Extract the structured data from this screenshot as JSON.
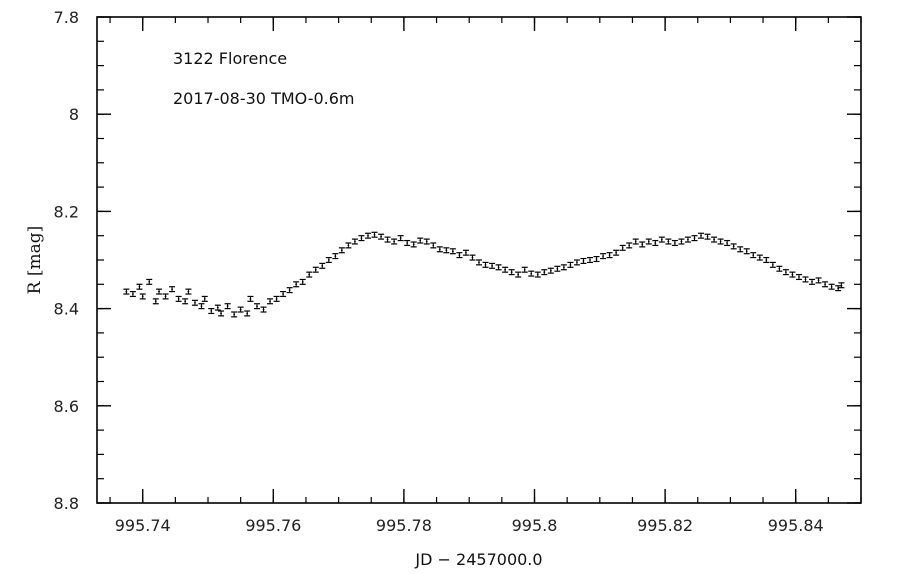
{
  "chart_data": {
    "type": "scatter",
    "title": "",
    "annotations": [
      "3122 Florence",
      "2017-08-30 TMO-0.6m"
    ],
    "xlabel": "JD − 2457000.0",
    "ylabel": "R [mag]",
    "xlim": [
      995.733,
      995.85
    ],
    "ylim": [
      7.8,
      8.8
    ],
    "y_inverted": true,
    "error_bars": true,
    "x_tick_labels": [
      "995.74",
      "995.76",
      "995.78",
      "995.8",
      "995.82",
      "995.84"
    ],
    "x_tick_values": [
      995.74,
      995.76,
      995.78,
      995.8,
      995.82,
      995.84
    ],
    "y_tick_labels": [
      "7.8",
      "8",
      "8.2",
      "8.4",
      "8.6",
      "8.8"
    ],
    "y_tick_values": [
      7.8,
      8.0,
      8.2,
      8.4,
      8.6,
      8.8
    ],
    "grid": false,
    "series": [
      {
        "color": "#000000",
        "error": 0.005,
        "points": [
          [
            995.7375,
            8.365
          ],
          [
            995.7385,
            8.37
          ],
          [
            995.7395,
            8.355
          ],
          [
            995.74,
            8.375
          ],
          [
            995.741,
            8.345
          ],
          [
            995.742,
            8.385
          ],
          [
            995.7425,
            8.365
          ],
          [
            995.7435,
            8.375
          ],
          [
            995.7445,
            8.36
          ],
          [
            995.7455,
            8.38
          ],
          [
            995.7465,
            8.385
          ],
          [
            995.747,
            8.365
          ],
          [
            995.748,
            8.388
          ],
          [
            995.749,
            8.395
          ],
          [
            995.7495,
            8.38
          ],
          [
            995.7505,
            8.405
          ],
          [
            995.7515,
            8.398
          ],
          [
            995.752,
            8.41
          ],
          [
            995.753,
            8.395
          ],
          [
            995.754,
            8.412
          ],
          [
            995.755,
            8.402
          ],
          [
            995.756,
            8.41
          ],
          [
            995.7565,
            8.38
          ],
          [
            995.7575,
            8.395
          ],
          [
            995.7585,
            8.402
          ],
          [
            995.7595,
            8.385
          ],
          [
            995.7605,
            8.38
          ],
          [
            995.7615,
            8.37
          ],
          [
            995.7625,
            8.362
          ],
          [
            995.7635,
            8.35
          ],
          [
            995.7645,
            8.345
          ],
          [
            995.7655,
            8.33
          ],
          [
            995.7665,
            8.32
          ],
          [
            995.7675,
            8.312
          ],
          [
            995.7685,
            8.3
          ],
          [
            995.7695,
            8.292
          ],
          [
            995.7705,
            8.28
          ],
          [
            995.7715,
            8.27
          ],
          [
            995.7725,
            8.262
          ],
          [
            995.7735,
            8.255
          ],
          [
            995.7745,
            8.25
          ],
          [
            995.7755,
            8.248
          ],
          [
            995.7765,
            8.252
          ],
          [
            995.7775,
            8.258
          ],
          [
            995.7785,
            8.262
          ],
          [
            995.7795,
            8.255
          ],
          [
            995.7805,
            8.265
          ],
          [
            995.7815,
            8.268
          ],
          [
            995.7825,
            8.26
          ],
          [
            995.7835,
            8.262
          ],
          [
            995.7845,
            8.27
          ],
          [
            995.7855,
            8.278
          ],
          [
            995.7865,
            8.28
          ],
          [
            995.7875,
            8.282
          ],
          [
            995.7885,
            8.29
          ],
          [
            995.7895,
            8.285
          ],
          [
            995.7905,
            8.295
          ],
          [
            995.7915,
            8.305
          ],
          [
            995.7925,
            8.31
          ],
          [
            995.7935,
            8.312
          ],
          [
            995.7945,
            8.315
          ],
          [
            995.7955,
            8.32
          ],
          [
            995.7965,
            8.325
          ],
          [
            995.7975,
            8.33
          ],
          [
            995.7985,
            8.32
          ],
          [
            995.7995,
            8.328
          ],
          [
            995.8005,
            8.33
          ],
          [
            995.8015,
            8.325
          ],
          [
            995.8025,
            8.322
          ],
          [
            995.8035,
            8.318
          ],
          [
            995.8045,
            8.315
          ],
          [
            995.8055,
            8.31
          ],
          [
            995.8065,
            8.305
          ],
          [
            995.8075,
            8.302
          ],
          [
            995.8085,
            8.3
          ],
          [
            995.8095,
            8.298
          ],
          [
            995.8105,
            8.292
          ],
          [
            995.8115,
            8.29
          ],
          [
            995.8125,
            8.285
          ],
          [
            995.8135,
            8.275
          ],
          [
            995.8145,
            8.27
          ],
          [
            995.8155,
            8.262
          ],
          [
            995.8165,
            8.268
          ],
          [
            995.8175,
            8.262
          ],
          [
            995.8185,
            8.265
          ],
          [
            995.8195,
            8.258
          ],
          [
            995.8205,
            8.262
          ],
          [
            995.8215,
            8.265
          ],
          [
            995.8225,
            8.262
          ],
          [
            995.8235,
            8.258
          ],
          [
            995.8245,
            8.255
          ],
          [
            995.8255,
            8.25
          ],
          [
            995.8265,
            8.252
          ],
          [
            995.8275,
            8.258
          ],
          [
            995.8285,
            8.262
          ],
          [
            995.8295,
            8.265
          ],
          [
            995.8305,
            8.272
          ],
          [
            995.8315,
            8.278
          ],
          [
            995.8325,
            8.282
          ],
          [
            995.8335,
            8.29
          ],
          [
            995.8345,
            8.295
          ],
          [
            995.8355,
            8.3
          ],
          [
            995.8365,
            8.31
          ],
          [
            995.8375,
            8.318
          ],
          [
            995.8385,
            8.325
          ],
          [
            995.8395,
            8.33
          ],
          [
            995.8405,
            8.335
          ],
          [
            995.8415,
            8.34
          ],
          [
            995.8425,
            8.345
          ],
          [
            995.8435,
            8.342
          ],
          [
            995.8445,
            8.35
          ],
          [
            995.8455,
            8.355
          ],
          [
            995.8465,
            8.358
          ],
          [
            995.847,
            8.352
          ]
        ]
      }
    ]
  }
}
